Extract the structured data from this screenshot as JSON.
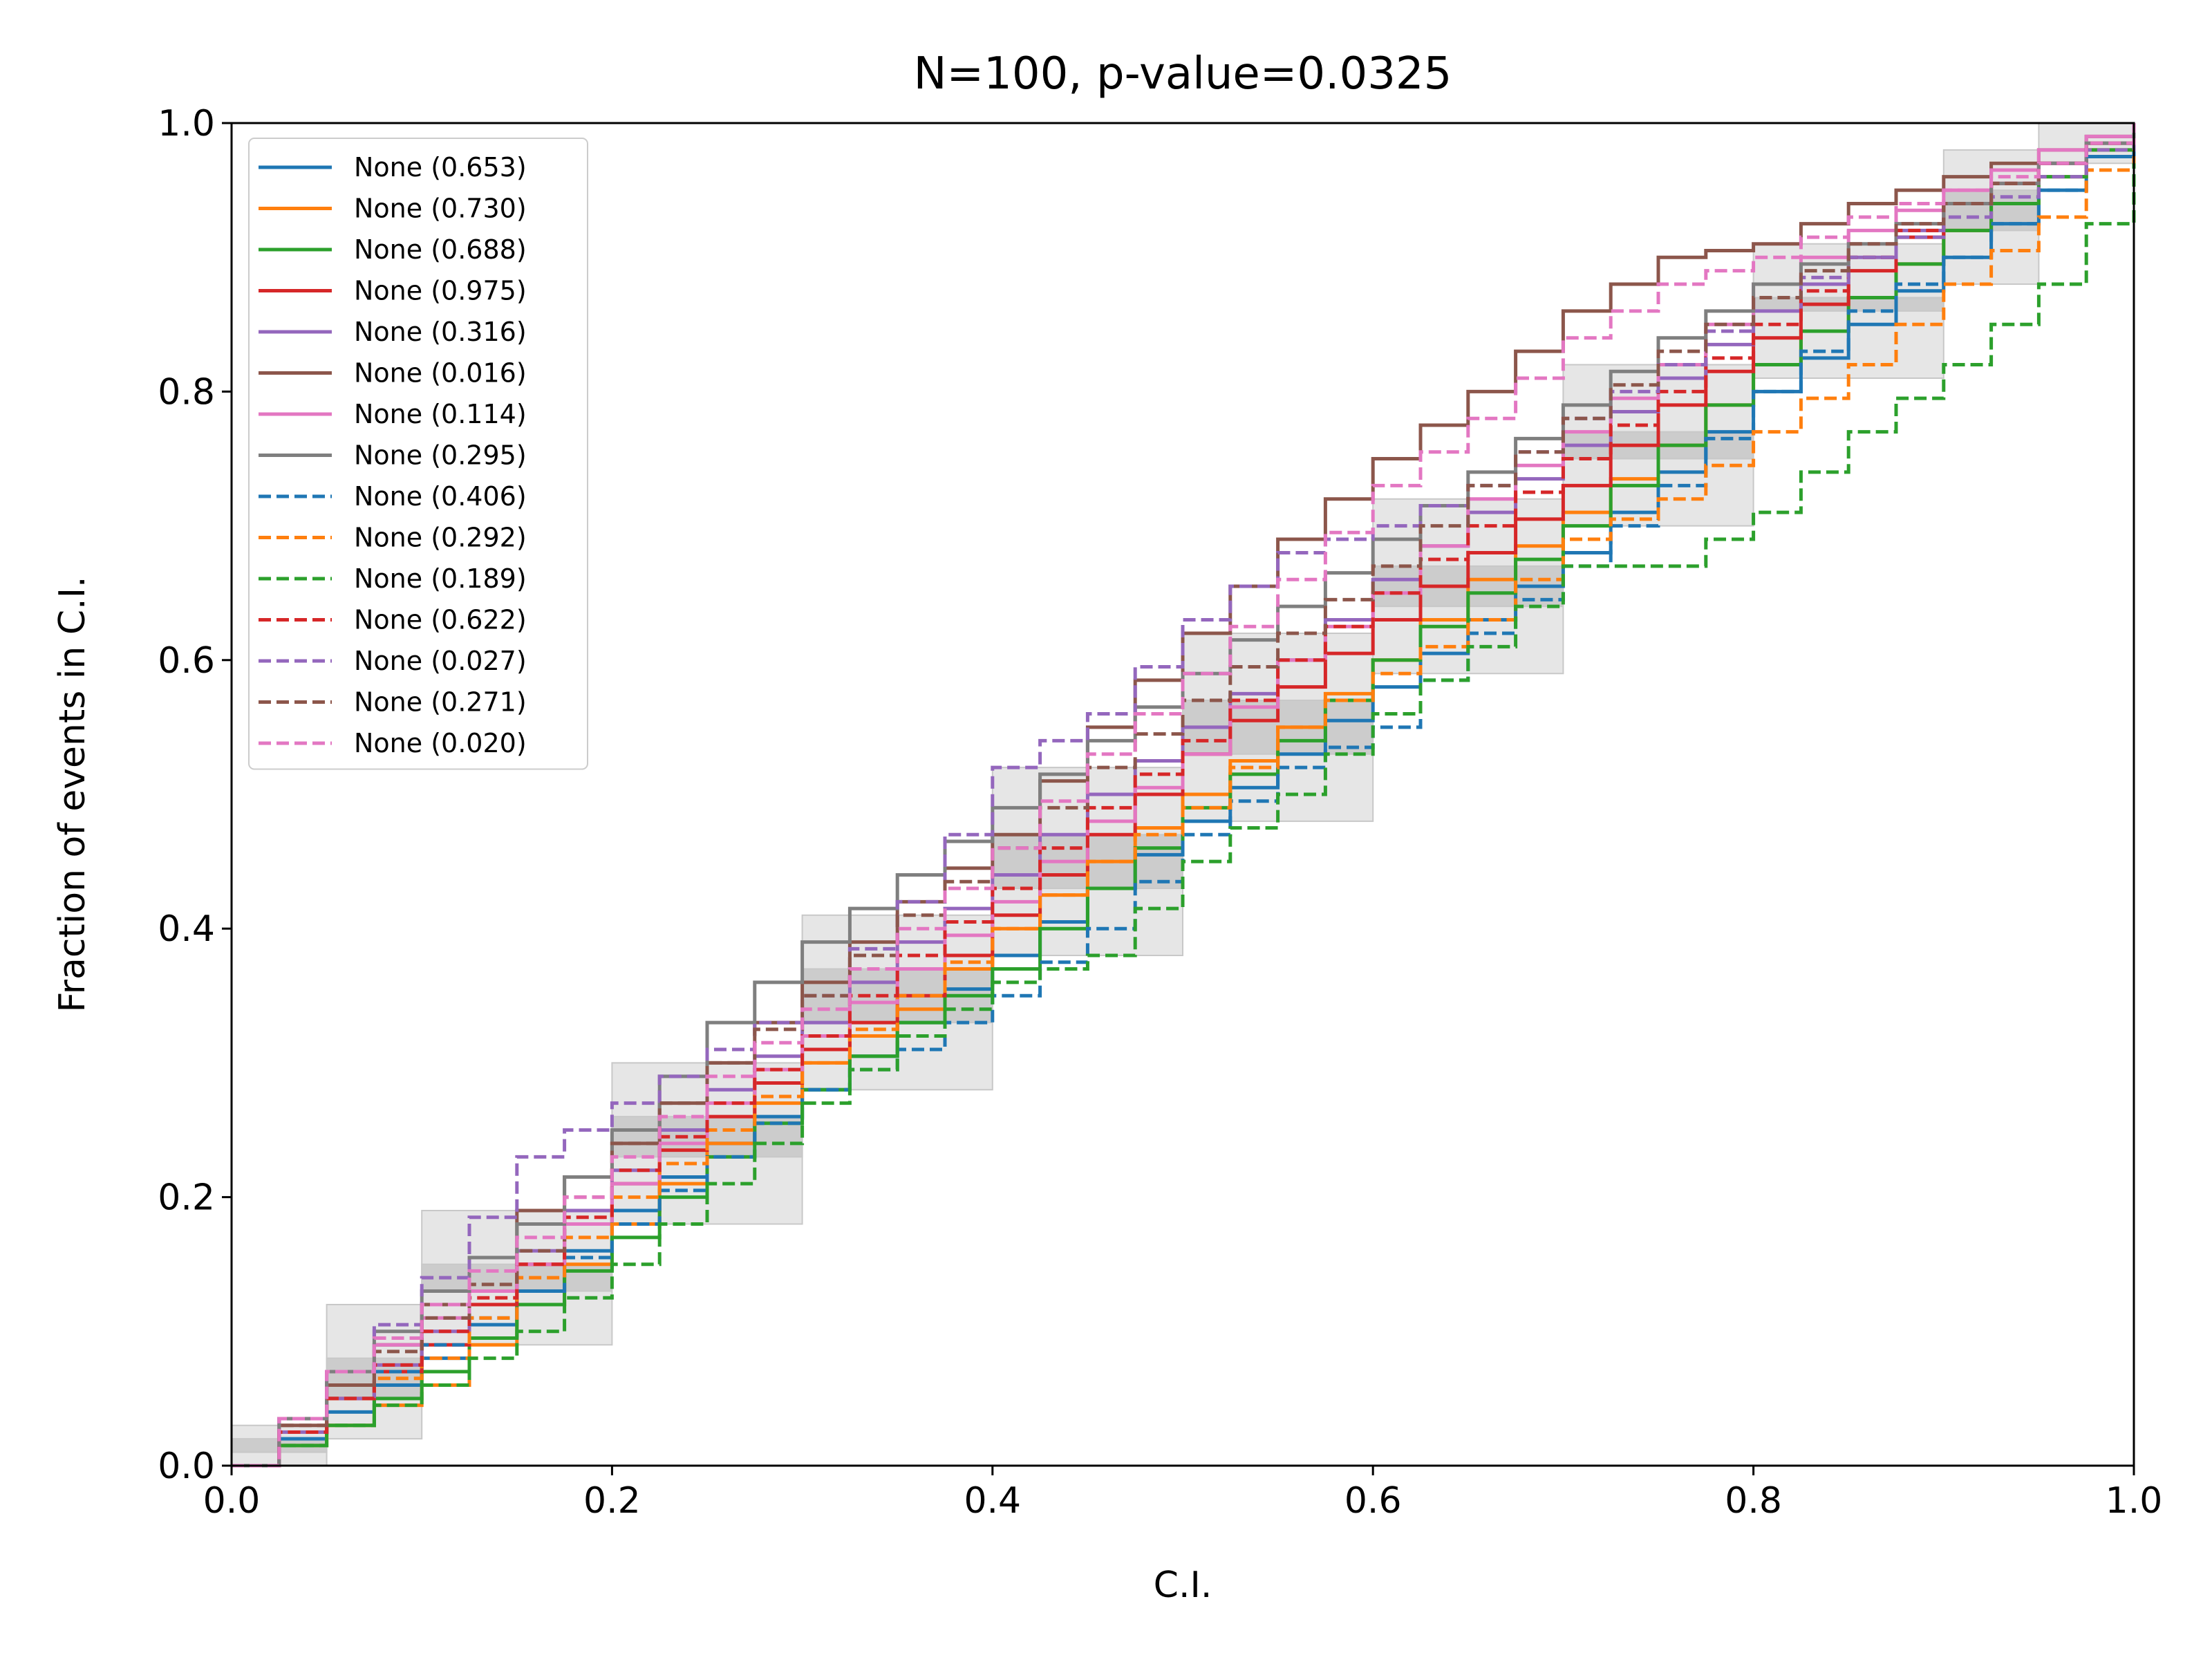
{
  "chart_data": {
    "type": "line",
    "title": "N=100, p-value=0.0325",
    "xlabel": "C.I.",
    "ylabel": "Fraction of events in C.I.",
    "xlim": [
      0.0,
      1.0
    ],
    "ylim": [
      0.0,
      1.0
    ],
    "xticks": [
      "0.0",
      "0.2",
      "0.4",
      "0.6",
      "0.8",
      "1.0"
    ],
    "yticks": [
      "0.0",
      "0.2",
      "0.4",
      "0.6",
      "0.8",
      "1.0"
    ],
    "grid": false,
    "legend_position": "top-left",
    "confidence_bands": [
      {
        "level": "outer",
        "color": "#e6e6e6",
        "x": [
          0.0,
          0.05,
          0.1,
          0.2,
          0.3,
          0.4,
          0.5,
          0.6,
          0.7,
          0.8,
          0.9,
          0.95,
          1.0
        ],
        "lower": [
          0.0,
          0.0,
          0.02,
          0.09,
          0.18,
          0.28,
          0.38,
          0.48,
          0.59,
          0.7,
          0.81,
          0.88,
          0.97
        ],
        "upper": [
          0.03,
          0.12,
          0.19,
          0.3,
          0.41,
          0.52,
          0.62,
          0.72,
          0.82,
          0.91,
          0.98,
          1.0,
          1.0
        ]
      },
      {
        "level": "inner",
        "color": "#cccccc",
        "x": [
          0.0,
          0.05,
          0.1,
          0.2,
          0.3,
          0.4,
          0.5,
          0.6,
          0.7,
          0.8,
          0.9,
          0.95,
          1.0
        ],
        "lower": [
          0.0,
          0.02,
          0.05,
          0.13,
          0.23,
          0.33,
          0.43,
          0.53,
          0.64,
          0.75,
          0.86,
          0.92,
          0.98
        ],
        "upper": [
          0.01,
          0.08,
          0.15,
          0.26,
          0.37,
          0.47,
          0.57,
          0.67,
          0.77,
          0.87,
          0.95,
          0.98,
          1.0
        ]
      }
    ],
    "series": [
      {
        "name": "None (0.653)",
        "color": "#1f77b4",
        "dash": "solid",
        "x": [
          0,
          0.05,
          0.1,
          0.15,
          0.2,
          0.25,
          0.3,
          0.35,
          0.4,
          0.45,
          0.5,
          0.55,
          0.6,
          0.65,
          0.7,
          0.75,
          0.8,
          0.85,
          0.9,
          0.95,
          1.0
        ],
        "y": [
          0,
          0.04,
          0.08,
          0.13,
          0.19,
          0.24,
          0.28,
          0.33,
          0.38,
          0.43,
          0.48,
          0.53,
          0.58,
          0.63,
          0.68,
          0.74,
          0.8,
          0.85,
          0.9,
          0.95,
          1.0
        ]
      },
      {
        "name": "None (0.730)",
        "color": "#ff7f0e",
        "dash": "solid",
        "x": [
          0,
          0.05,
          0.1,
          0.15,
          0.2,
          0.25,
          0.3,
          0.35,
          0.4,
          0.45,
          0.5,
          0.55,
          0.6,
          0.65,
          0.7,
          0.75,
          0.8,
          0.85,
          0.9,
          0.95,
          1.0
        ],
        "y": [
          0,
          0.03,
          0.06,
          0.12,
          0.18,
          0.24,
          0.3,
          0.34,
          0.4,
          0.45,
          0.5,
          0.55,
          0.6,
          0.66,
          0.71,
          0.76,
          0.82,
          0.87,
          0.92,
          0.96,
          1.0
        ]
      },
      {
        "name": "None (0.688)",
        "color": "#2ca02c",
        "dash": "solid",
        "x": [
          0,
          0.05,
          0.1,
          0.15,
          0.2,
          0.25,
          0.3,
          0.35,
          0.4,
          0.45,
          0.5,
          0.55,
          0.6,
          0.65,
          0.7,
          0.75,
          0.8,
          0.85,
          0.9,
          0.95,
          1.0
        ],
        "y": [
          0,
          0.03,
          0.07,
          0.12,
          0.17,
          0.23,
          0.28,
          0.33,
          0.37,
          0.43,
          0.49,
          0.54,
          0.6,
          0.65,
          0.7,
          0.76,
          0.82,
          0.87,
          0.92,
          0.96,
          1.0
        ]
      },
      {
        "name": "None (0.975)",
        "color": "#d62728",
        "dash": "solid",
        "x": [
          0,
          0.05,
          0.1,
          0.15,
          0.2,
          0.25,
          0.3,
          0.35,
          0.4,
          0.45,
          0.5,
          0.55,
          0.6,
          0.65,
          0.7,
          0.75,
          0.8,
          0.85,
          0.9,
          0.95,
          1.0
        ],
        "y": [
          0,
          0.05,
          0.09,
          0.15,
          0.21,
          0.26,
          0.31,
          0.35,
          0.41,
          0.47,
          0.53,
          0.58,
          0.63,
          0.68,
          0.73,
          0.79,
          0.84,
          0.89,
          0.94,
          0.97,
          1.0
        ]
      },
      {
        "name": "None (0.316)",
        "color": "#9467bd",
        "dash": "solid",
        "x": [
          0,
          0.05,
          0.1,
          0.15,
          0.2,
          0.25,
          0.3,
          0.35,
          0.4,
          0.45,
          0.5,
          0.55,
          0.6,
          0.65,
          0.7,
          0.75,
          0.8,
          0.85,
          0.9,
          0.95,
          1.0
        ],
        "y": [
          0,
          0.05,
          0.1,
          0.16,
          0.22,
          0.28,
          0.33,
          0.39,
          0.44,
          0.5,
          0.55,
          0.6,
          0.66,
          0.71,
          0.76,
          0.81,
          0.86,
          0.9,
          0.94,
          0.97,
          1.0
        ]
      },
      {
        "name": "None (0.016)",
        "color": "#8c564b",
        "dash": "solid",
        "x": [
          0,
          0.05,
          0.1,
          0.15,
          0.2,
          0.25,
          0.3,
          0.35,
          0.4,
          0.45,
          0.5,
          0.55,
          0.6,
          0.65,
          0.7,
          0.75,
          0.8,
          0.85,
          0.9,
          0.95,
          1.0
        ],
        "y": [
          0,
          0.06,
          0.12,
          0.19,
          0.24,
          0.3,
          0.36,
          0.42,
          0.47,
          0.55,
          0.62,
          0.69,
          0.75,
          0.8,
          0.86,
          0.9,
          0.91,
          0.94,
          0.96,
          0.98,
          1.0
        ]
      },
      {
        "name": "None (0.114)",
        "color": "#e377c2",
        "dash": "solid",
        "x": [
          0,
          0.05,
          0.1,
          0.15,
          0.2,
          0.25,
          0.3,
          0.35,
          0.4,
          0.45,
          0.5,
          0.55,
          0.6,
          0.65,
          0.7,
          0.75,
          0.8,
          0.85,
          0.9,
          0.95,
          1.0
        ],
        "y": [
          0,
          0.07,
          0.11,
          0.15,
          0.21,
          0.27,
          0.32,
          0.37,
          0.42,
          0.48,
          0.53,
          0.6,
          0.65,
          0.72,
          0.77,
          0.82,
          0.88,
          0.92,
          0.95,
          0.98,
          1.0
        ]
      },
      {
        "name": "None (0.295)",
        "color": "#7f7f7f",
        "dash": "solid",
        "x": [
          0,
          0.05,
          0.1,
          0.15,
          0.2,
          0.25,
          0.3,
          0.35,
          0.4,
          0.45,
          0.5,
          0.55,
          0.6,
          0.65,
          0.7,
          0.75,
          0.8,
          0.85,
          0.9,
          0.95,
          1.0
        ],
        "y": [
          0,
          0.07,
          0.13,
          0.18,
          0.25,
          0.33,
          0.39,
          0.44,
          0.49,
          0.54,
          0.59,
          0.64,
          0.69,
          0.74,
          0.79,
          0.84,
          0.88,
          0.91,
          0.94,
          0.97,
          1.0
        ]
      },
      {
        "name": "None (0.406)",
        "color": "#1f77b4",
        "dash": "dashed",
        "x": [
          0,
          0.05,
          0.1,
          0.15,
          0.2,
          0.25,
          0.3,
          0.35,
          0.4,
          0.45,
          0.5,
          0.55,
          0.6,
          0.65,
          0.7,
          0.75,
          0.8,
          0.85,
          0.9,
          0.95,
          1.0
        ],
        "y": [
          0,
          0.05,
          0.09,
          0.13,
          0.18,
          0.23,
          0.28,
          0.31,
          0.35,
          0.4,
          0.47,
          0.52,
          0.55,
          0.62,
          0.67,
          0.73,
          0.8,
          0.86,
          0.9,
          0.95,
          1.0
        ]
      },
      {
        "name": "None (0.292)",
        "color": "#ff7f0e",
        "dash": "dashed",
        "x": [
          0,
          0.05,
          0.1,
          0.15,
          0.2,
          0.25,
          0.3,
          0.35,
          0.4,
          0.45,
          0.5,
          0.55,
          0.6,
          0.65,
          0.7,
          0.75,
          0.8,
          0.85,
          0.9,
          0.95,
          1.0
        ],
        "y": [
          0,
          0.05,
          0.08,
          0.14,
          0.2,
          0.25,
          0.3,
          0.35,
          0.4,
          0.45,
          0.49,
          0.55,
          0.59,
          0.63,
          0.69,
          0.72,
          0.77,
          0.82,
          0.88,
          0.93,
          1.0
        ]
      },
      {
        "name": "None (0.189)",
        "color": "#2ca02c",
        "dash": "dashed",
        "x": [
          0,
          0.05,
          0.1,
          0.15,
          0.2,
          0.25,
          0.3,
          0.35,
          0.4,
          0.45,
          0.5,
          0.55,
          0.6,
          0.65,
          0.7,
          0.75,
          0.8,
          0.85,
          0.9,
          0.95,
          1.0
        ],
        "y": [
          0,
          0.03,
          0.06,
          0.1,
          0.15,
          0.21,
          0.27,
          0.32,
          0.36,
          0.38,
          0.45,
          0.5,
          0.56,
          0.61,
          0.67,
          0.67,
          0.71,
          0.77,
          0.82,
          0.88,
          0.97
        ]
      },
      {
        "name": "None (0.622)",
        "color": "#d62728",
        "dash": "dashed",
        "x": [
          0,
          0.05,
          0.1,
          0.15,
          0.2,
          0.25,
          0.3,
          0.35,
          0.4,
          0.45,
          0.5,
          0.55,
          0.6,
          0.65,
          0.7,
          0.75,
          0.8,
          0.85,
          0.9,
          0.95,
          1.0
        ],
        "y": [
          0,
          0.05,
          0.1,
          0.15,
          0.22,
          0.27,
          0.32,
          0.38,
          0.43,
          0.49,
          0.54,
          0.6,
          0.65,
          0.7,
          0.75,
          0.8,
          0.85,
          0.9,
          0.94,
          0.97,
          1.0
        ]
      },
      {
        "name": "None (0.027)",
        "color": "#9467bd",
        "dash": "dashed",
        "x": [
          0,
          0.05,
          0.1,
          0.15,
          0.2,
          0.25,
          0.3,
          0.35,
          0.4,
          0.45,
          0.5,
          0.55,
          0.6,
          0.65,
          0.7,
          0.75,
          0.8,
          0.85,
          0.9,
          0.95,
          1.0
        ],
        "y": [
          0,
          0.07,
          0.14,
          0.23,
          0.27,
          0.31,
          0.35,
          0.42,
          0.52,
          0.56,
          0.63,
          0.68,
          0.7,
          0.73,
          0.78,
          0.82,
          0.87,
          0.9,
          0.93,
          0.96,
          1.0
        ]
      },
      {
        "name": "None (0.271)",
        "color": "#8c564b",
        "dash": "dashed",
        "x": [
          0,
          0.05,
          0.1,
          0.15,
          0.2,
          0.25,
          0.3,
          0.35,
          0.4,
          0.45,
          0.5,
          0.55,
          0.6,
          0.65,
          0.7,
          0.75,
          0.8,
          0.85,
          0.9,
          0.95,
          1.0
        ],
        "y": [
          0,
          0.06,
          0.11,
          0.16,
          0.24,
          0.3,
          0.35,
          0.41,
          0.46,
          0.52,
          0.57,
          0.62,
          0.67,
          0.73,
          0.78,
          0.83,
          0.87,
          0.91,
          0.94,
          0.97,
          1.0
        ]
      },
      {
        "name": "None (0.020)",
        "color": "#e377c2",
        "dash": "dashed",
        "x": [
          0,
          0.05,
          0.1,
          0.15,
          0.2,
          0.25,
          0.3,
          0.35,
          0.4,
          0.45,
          0.5,
          0.55,
          0.6,
          0.65,
          0.7,
          0.75,
          0.8,
          0.85,
          0.9,
          0.95,
          1.0
        ],
        "y": [
          0,
          0.07,
          0.12,
          0.17,
          0.23,
          0.29,
          0.34,
          0.4,
          0.46,
          0.53,
          0.59,
          0.66,
          0.73,
          0.78,
          0.84,
          0.88,
          0.9,
          0.93,
          0.95,
          0.97,
          1.0
        ]
      }
    ]
  }
}
